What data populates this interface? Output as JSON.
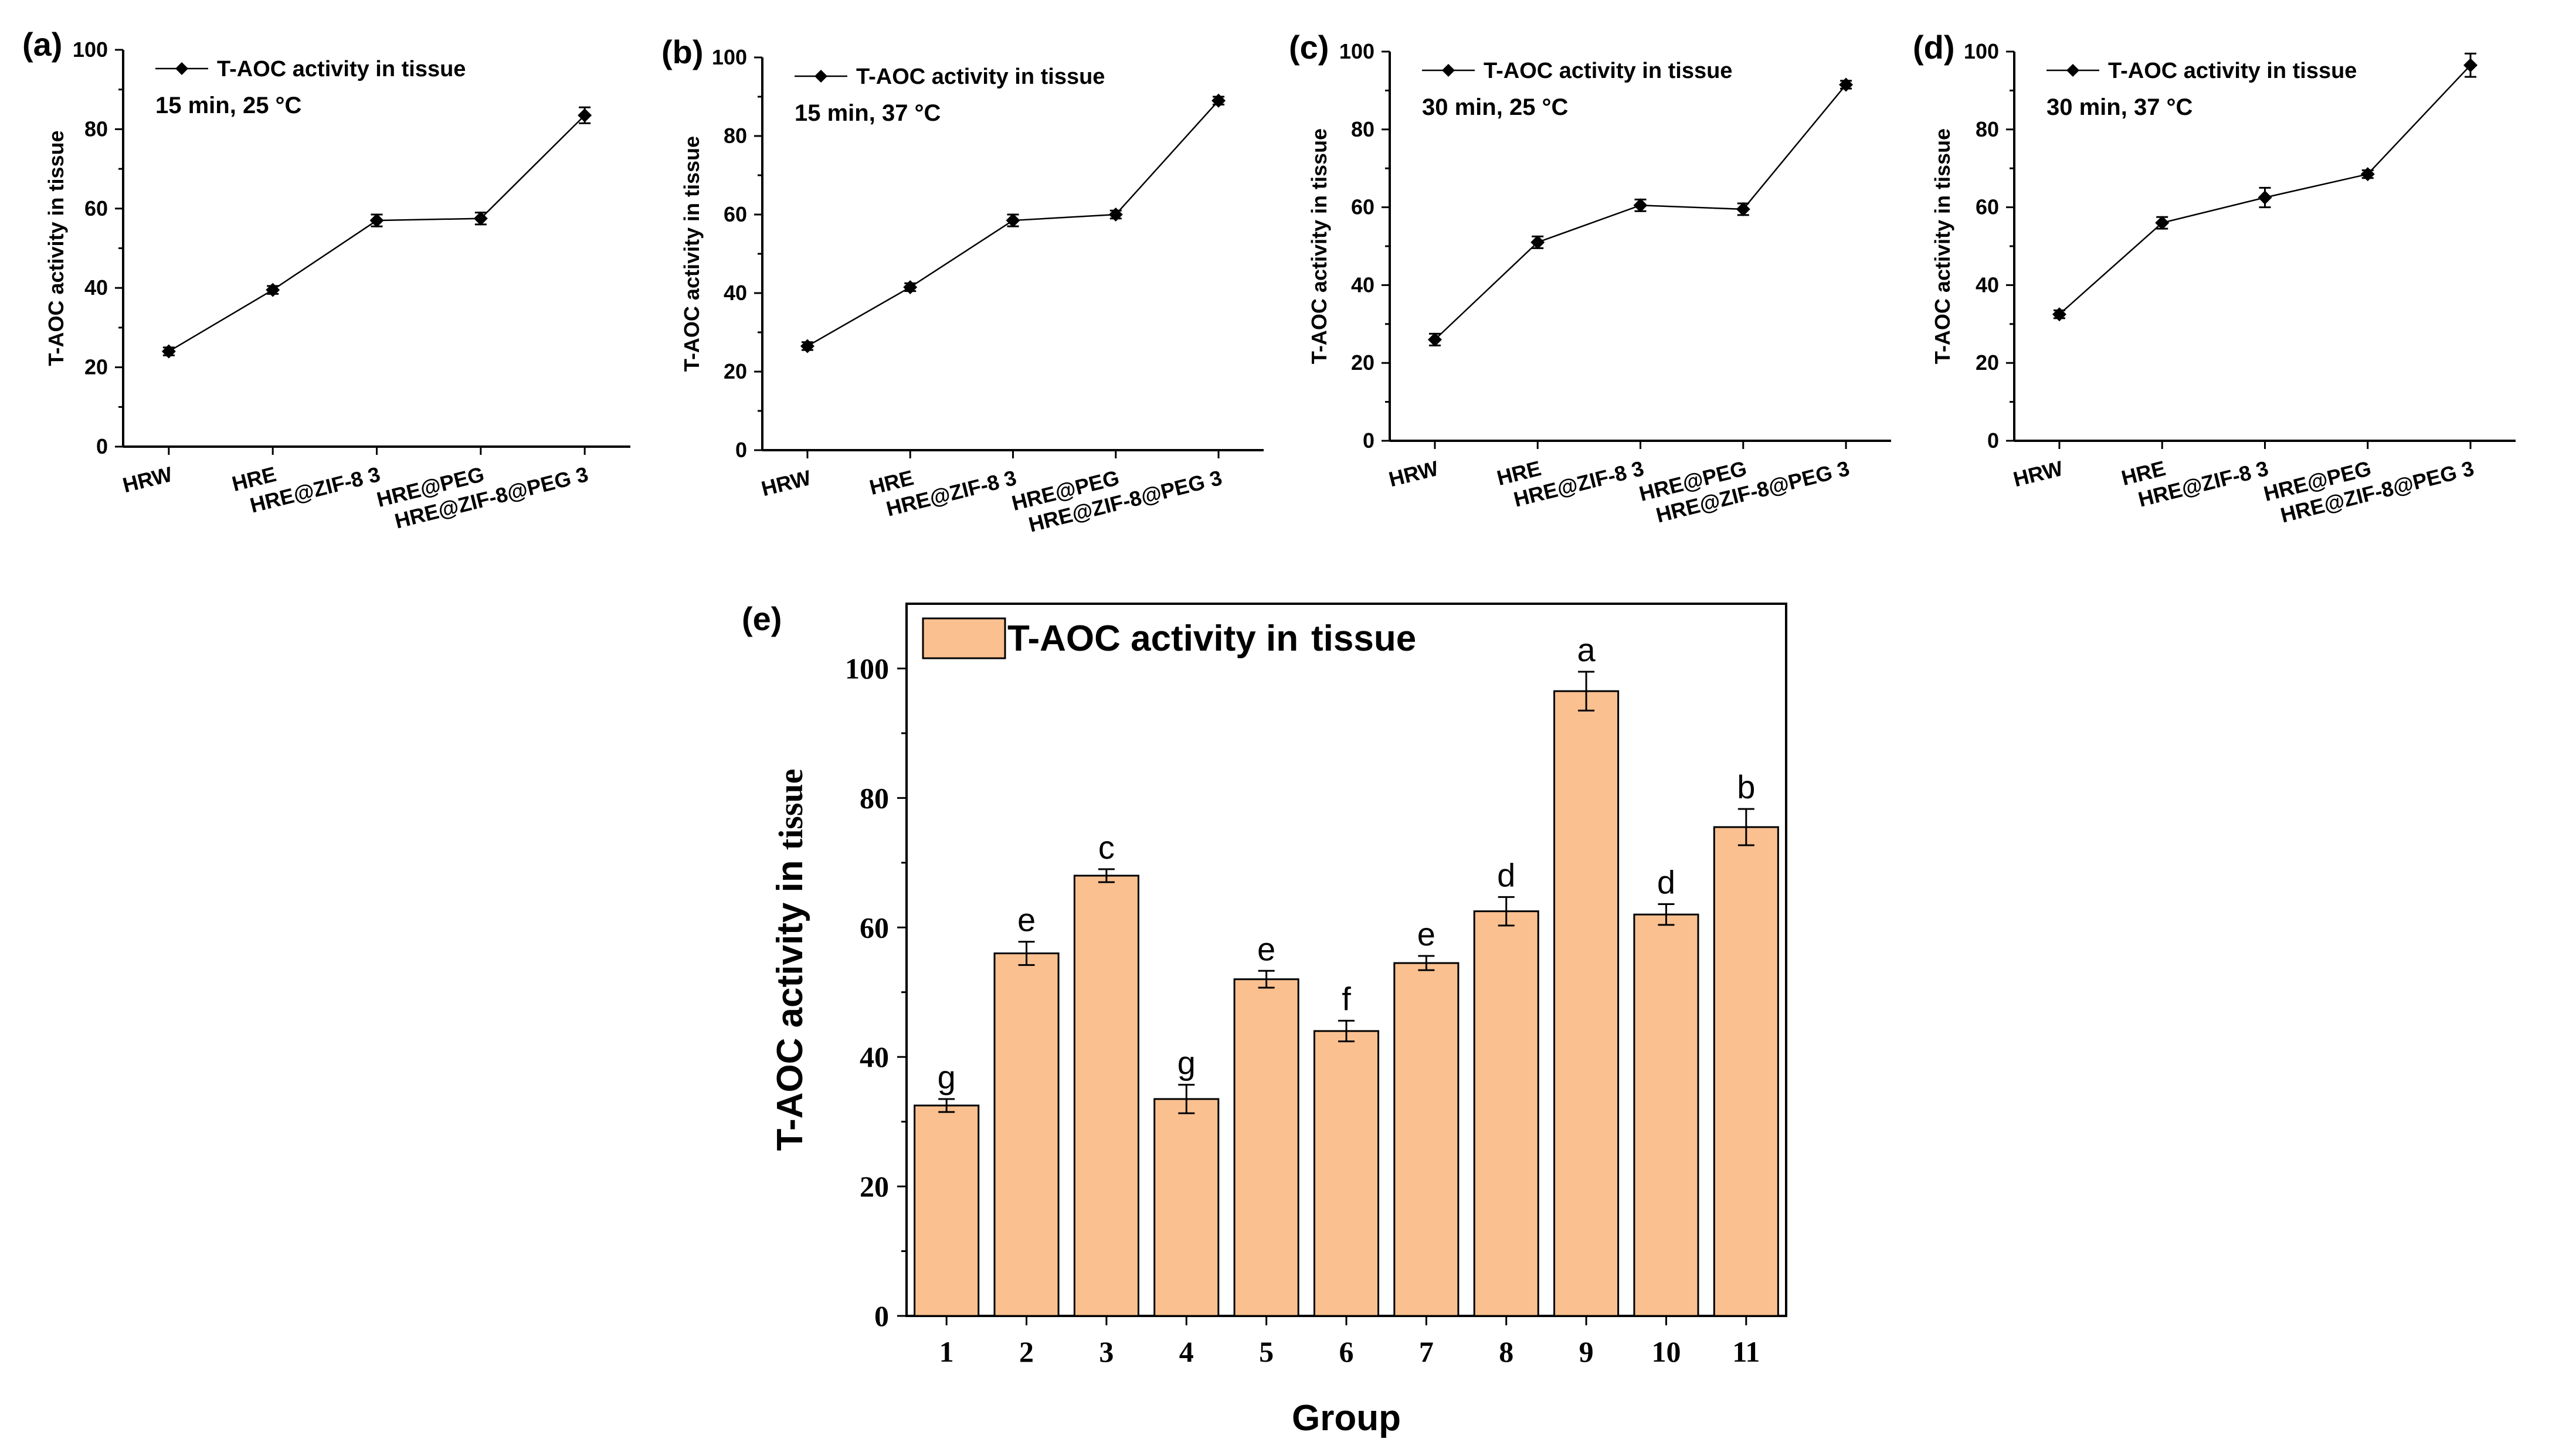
{
  "figure": {
    "panels": [
      "(a)",
      "(b)",
      "(c)",
      "(d)",
      "(e)"
    ]
  },
  "chart_data": [
    {
      "panel": "(a)",
      "type": "line",
      "categories": [
        "HRW",
        "HRE",
        "HRE@ZIF-8 3",
        "HRE@PEG",
        "HRE@ZIF-8@PEG 3"
      ],
      "series": [
        {
          "name": "T-AOC activity in tissue",
          "values": [
            24,
            39.5,
            57,
            57.5,
            83.5
          ],
          "errors": [
            1,
            1,
            1.5,
            1.5,
            2
          ]
        }
      ],
      "condition": "15 min, 25 °C",
      "ylabel": "T-AOC activity in tissue",
      "yticks": [
        0,
        20,
        40,
        60,
        80,
        100
      ],
      "ylim": [
        0,
        100
      ],
      "legend": "top-left"
    },
    {
      "panel": "(b)",
      "type": "line",
      "categories": [
        "HRW",
        "HRE",
        "HRE@ZIF-8 3",
        "HRE@PEG",
        "HRE@ZIF-8@PEG 3"
      ],
      "series": [
        {
          "name": "T-AOC activity in tissue",
          "values": [
            26.5,
            41.5,
            58.5,
            60,
            89
          ],
          "errors": [
            1,
            1,
            1.5,
            1,
            1
          ]
        }
      ],
      "condition": "15 min, 37 °C",
      "ylabel": "T-AOC activity in tissue",
      "yticks": [
        0,
        20,
        40,
        60,
        80,
        100
      ],
      "ylim": [
        0,
        100
      ],
      "legend": "top-left"
    },
    {
      "panel": "(c)",
      "type": "line",
      "categories": [
        "HRW",
        "HRE",
        "HRE@ZIF-8 3",
        "HRE@PEG",
        "HRE@ZIF-8@PEG 3"
      ],
      "series": [
        {
          "name": "T-AOC activity in tissue",
          "values": [
            26,
            51,
            60.5,
            59.5,
            91.5
          ],
          "errors": [
            1.5,
            1.5,
            1.5,
            1.5,
            1
          ]
        }
      ],
      "condition": "30 min, 25 °C",
      "ylabel": "T-AOC activity in tissue",
      "yticks": [
        0,
        20,
        40,
        60,
        80,
        100
      ],
      "ylim": [
        0,
        100
      ],
      "legend": "top-left"
    },
    {
      "panel": "(d)",
      "type": "line",
      "categories": [
        "HRW",
        "HRE",
        "HRE@ZIF-8 3",
        "HRE@PEG",
        "HRE@ZIF-8@PEG 3"
      ],
      "series": [
        {
          "name": "T-AOC activity in tissue",
          "values": [
            32.5,
            56,
            62.5,
            68.5,
            96.5
          ],
          "errors": [
            1,
            1.5,
            2.5,
            1,
            3
          ]
        }
      ],
      "condition": "30 min, 37 °C",
      "ylabel": "T-AOC activity in tissue",
      "yticks": [
        0,
        20,
        40,
        60,
        80,
        100
      ],
      "ylim": [
        0,
        100
      ],
      "legend": "top-left"
    },
    {
      "panel": "(e)",
      "type": "bar",
      "categories": [
        "1",
        "2",
        "3",
        "4",
        "5",
        "6",
        "7",
        "8",
        "9",
        "10",
        "11"
      ],
      "series": [
        {
          "name": "T-AOC activity in tissue",
          "values": [
            32.5,
            56,
            68,
            33.5,
            52,
            44,
            54.5,
            62.5,
            96.5,
            62,
            75.5
          ],
          "errors": [
            1,
            1.8,
            1,
            2.2,
            1.3,
            1.6,
            1.1,
            2.2,
            3,
            1.6,
            2.8
          ]
        }
      ],
      "significance": [
        "g",
        "e",
        "c",
        "g",
        "e",
        "f",
        "e",
        "d",
        "a",
        "d",
        "b"
      ],
      "legend_label_main": "T-AOC activity in",
      "legend_label_tail": "tissue",
      "ylabel_main": "T-AOC activity in",
      "ylabel_tail": "tissue",
      "xlabel": "Group",
      "yticks": [
        0,
        20,
        40,
        60,
        80,
        100
      ],
      "ylim": [
        0,
        110
      ],
      "legend": "top-left"
    }
  ]
}
